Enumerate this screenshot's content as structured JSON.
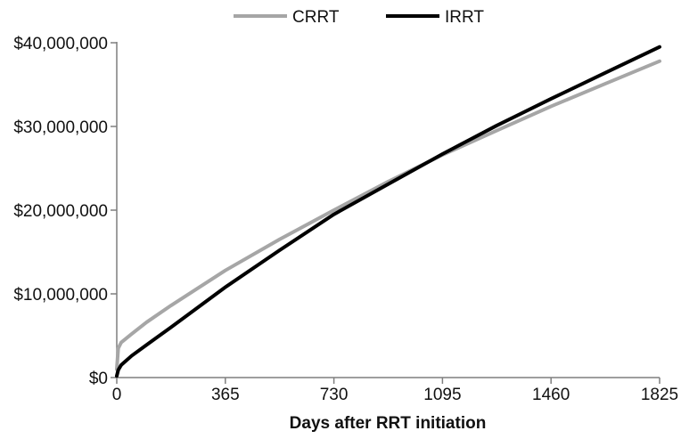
{
  "chart_data": {
    "type": "line",
    "title": "",
    "xlabel": "Days after RRT initiation",
    "ylabel": "",
    "xlim": [
      0,
      1825
    ],
    "ylim": [
      0,
      40000000
    ],
    "x_ticks": [
      0,
      365,
      730,
      1095,
      1460,
      1825
    ],
    "x_tick_labels": [
      "0",
      "365",
      "730",
      "1095",
      "1460",
      "1825"
    ],
    "y_ticks": [
      0,
      10000000,
      20000000,
      30000000,
      40000000
    ],
    "y_tick_labels": [
      "$0",
      "$10,000,000",
      "$20,000,000",
      "$30,000,000",
      "$40,000,000"
    ],
    "grid": false,
    "legend_position": "top",
    "series": [
      {
        "name": "CRRT",
        "color": "#a6a6a6",
        "x": [
          0,
          5,
          15,
          50,
          100,
          182,
          365,
          547,
          730,
          912,
          1095,
          1277,
          1460,
          1642,
          1825
        ],
        "y": [
          1000000,
          3500000,
          4200000,
          5200000,
          6600000,
          8600000,
          12800000,
          16500000,
          20000000,
          23400000,
          26600000,
          29500000,
          32400000,
          35100000,
          37800000
        ]
      },
      {
        "name": "IRRT",
        "color": "#000000",
        "x": [
          0,
          5,
          15,
          50,
          100,
          182,
          365,
          547,
          730,
          912,
          1095,
          1277,
          1460,
          1642,
          1825
        ],
        "y": [
          200000,
          900000,
          1500000,
          2600000,
          3900000,
          6000000,
          10800000,
          15200000,
          19500000,
          23100000,
          26700000,
          30100000,
          33300000,
          36400000,
          39500000
        ]
      }
    ]
  }
}
